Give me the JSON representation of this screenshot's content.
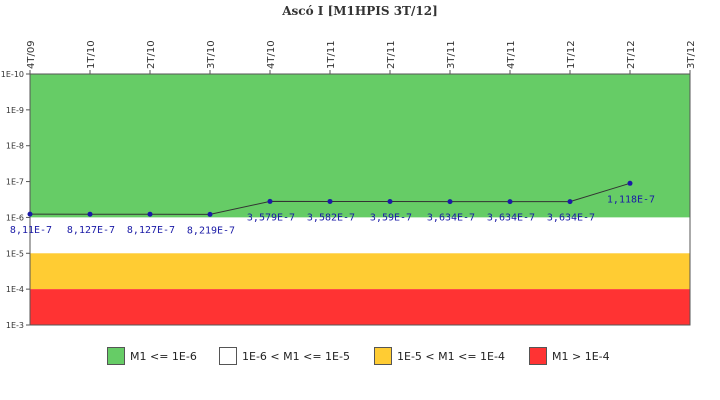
{
  "chart_data": {
    "type": "line",
    "title": "Ascó I [M1HPIS 3T/12]",
    "categories": [
      "4T/09",
      "1T/10",
      "2T/10",
      "3T/10",
      "4T/10",
      "1T/11",
      "2T/11",
      "3T/11",
      "4T/11",
      "1T/12",
      "2T/12",
      "3T/12"
    ],
    "y_scale": "log",
    "y_tick_labels": [
      "1E-10",
      "1E-9",
      "1E-8",
      "1E-7",
      "1E-6",
      "1E-5",
      "1E-4",
      "1E-3"
    ],
    "ylim": [
      0.001,
      1e-10
    ],
    "y_inverted": true,
    "series": [
      {
        "color": "#1a1aa6",
        "values": [
          8.11e-07,
          8.127e-07,
          8.127e-07,
          8.219e-07,
          3.579e-07,
          3.582e-07,
          3.59e-07,
          3.634e-07,
          3.634e-07,
          3.634e-07,
          1.118e-07,
          null
        ],
        "labels": [
          "8,11E-7",
          "8,127E-7",
          "8,127E-7",
          "8,219E-7",
          "3,579E-7",
          "3,582E-7",
          "3,59E-7",
          "3,634E-7",
          "3,634E-7",
          "3,634E-7",
          "1,118E-7",
          ""
        ]
      }
    ],
    "bands": [
      {
        "from": 1e-10,
        "to": 1e-06,
        "color": "#66cc66"
      },
      {
        "from": 1e-06,
        "to": 1e-05,
        "color": "#ffffff"
      },
      {
        "from": 1e-05,
        "to": 0.0001,
        "color": "#ffcc33"
      },
      {
        "from": 0.0001,
        "to": 0.001,
        "color": "#ff3333"
      }
    ],
    "legend": [
      {
        "label": "M1 <= 1E-6",
        "color": "#66cc66"
      },
      {
        "label": "1E-6 < M1 <= 1E-5",
        "color": "#ffffff"
      },
      {
        "label": "1E-5 < M1 <= 1E-4",
        "color": "#ffcc33"
      },
      {
        "label": "M1 > 1E-4",
        "color": "#ff3333"
      }
    ],
    "legend_position": "bottom",
    "grid": false
  }
}
